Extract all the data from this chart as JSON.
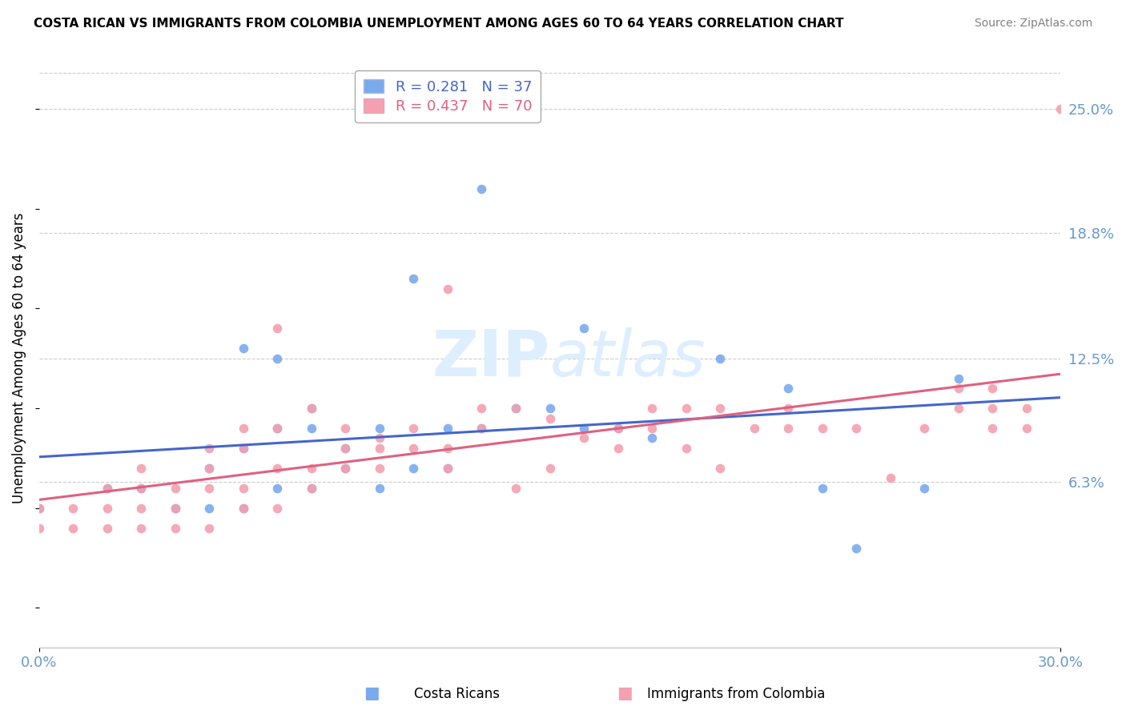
{
  "title": "COSTA RICAN VS IMMIGRANTS FROM COLOMBIA UNEMPLOYMENT AMONG AGES 60 TO 64 YEARS CORRELATION CHART",
  "source": "Source: ZipAtlas.com",
  "ylabel_label": "Unemployment Among Ages 60 to 64 years",
  "xmin": 0.0,
  "xmax": 0.3,
  "ymin": -0.02,
  "ymax": 0.27,
  "legend_r1": "R = 0.281",
  "legend_n1": "N = 37",
  "legend_r2": "R = 0.437",
  "legend_n2": "N = 70",
  "color_blue": "#7aaaee",
  "color_pink": "#f4a0b0",
  "color_blue_dark": "#4466CC",
  "color_pink_dark": "#e06080",
  "color_axis_text": "#6699CC",
  "watermark_zip": "ZIP",
  "watermark_atlas": "atlas",
  "blue_scatter_x": [
    0.0,
    0.02,
    0.03,
    0.04,
    0.05,
    0.05,
    0.06,
    0.06,
    0.06,
    0.07,
    0.07,
    0.07,
    0.08,
    0.08,
    0.08,
    0.09,
    0.09,
    0.1,
    0.1,
    0.11,
    0.11,
    0.12,
    0.12,
    0.13,
    0.13,
    0.14,
    0.15,
    0.16,
    0.16,
    0.17,
    0.18,
    0.2,
    0.22,
    0.23,
    0.24,
    0.26,
    0.27
  ],
  "blue_scatter_y": [
    0.05,
    0.06,
    0.06,
    0.05,
    0.05,
    0.07,
    0.05,
    0.08,
    0.13,
    0.06,
    0.09,
    0.125,
    0.06,
    0.09,
    0.1,
    0.07,
    0.08,
    0.06,
    0.09,
    0.07,
    0.165,
    0.07,
    0.09,
    0.21,
    0.09,
    0.1,
    0.1,
    0.09,
    0.14,
    0.09,
    0.085,
    0.125,
    0.11,
    0.06,
    0.03,
    0.06,
    0.115
  ],
  "pink_scatter_x": [
    0.0,
    0.0,
    0.01,
    0.01,
    0.02,
    0.02,
    0.02,
    0.03,
    0.03,
    0.03,
    0.03,
    0.04,
    0.04,
    0.04,
    0.05,
    0.05,
    0.05,
    0.05,
    0.06,
    0.06,
    0.06,
    0.06,
    0.07,
    0.07,
    0.07,
    0.07,
    0.08,
    0.08,
    0.08,
    0.09,
    0.09,
    0.09,
    0.1,
    0.1,
    0.1,
    0.11,
    0.11,
    0.12,
    0.12,
    0.12,
    0.13,
    0.13,
    0.14,
    0.14,
    0.15,
    0.15,
    0.16,
    0.17,
    0.17,
    0.18,
    0.18,
    0.19,
    0.19,
    0.2,
    0.2,
    0.21,
    0.22,
    0.22,
    0.23,
    0.24,
    0.25,
    0.26,
    0.27,
    0.27,
    0.28,
    0.28,
    0.28,
    0.29,
    0.29,
    0.3
  ],
  "pink_scatter_y": [
    0.04,
    0.05,
    0.04,
    0.05,
    0.04,
    0.05,
    0.06,
    0.04,
    0.05,
    0.06,
    0.07,
    0.04,
    0.05,
    0.06,
    0.04,
    0.06,
    0.07,
    0.08,
    0.05,
    0.06,
    0.08,
    0.09,
    0.05,
    0.07,
    0.09,
    0.14,
    0.06,
    0.07,
    0.1,
    0.07,
    0.08,
    0.09,
    0.07,
    0.08,
    0.085,
    0.08,
    0.09,
    0.07,
    0.08,
    0.16,
    0.09,
    0.1,
    0.06,
    0.1,
    0.07,
    0.095,
    0.085,
    0.08,
    0.09,
    0.09,
    0.1,
    0.08,
    0.1,
    0.07,
    0.1,
    0.09,
    0.09,
    0.1,
    0.09,
    0.09,
    0.065,
    0.09,
    0.1,
    0.11,
    0.09,
    0.1,
    0.11,
    0.09,
    0.1,
    0.25
  ],
  "grid_color": "#CCCCCC",
  "grid_style": "--",
  "right_yticks": [
    0.063,
    0.125,
    0.188,
    0.25
  ],
  "right_ytick_labels": [
    "6.3%",
    "12.5%",
    "18.8%",
    "25.0%"
  ]
}
